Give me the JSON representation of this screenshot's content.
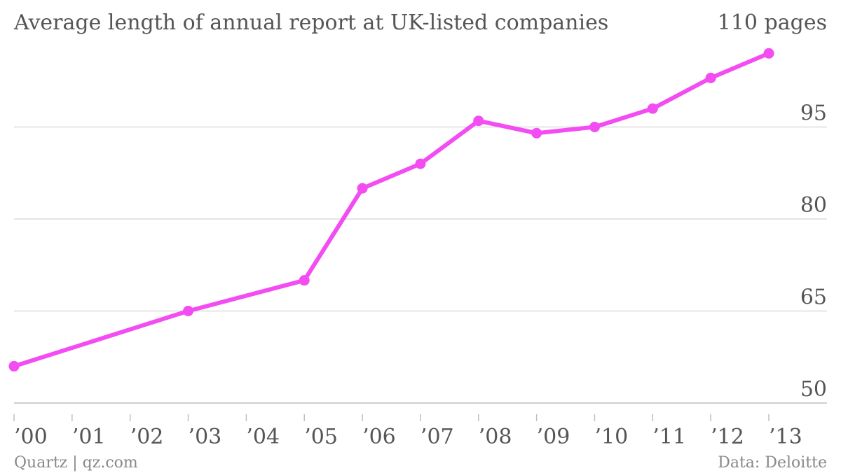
{
  "chart_data": {
    "type": "line",
    "title": "Average length of annual report at UK-listed companies",
    "y_unit_label": "110 pages",
    "categories": [
      "’00",
      "’01",
      "’02",
      "’03",
      "’04",
      "’05",
      "’06",
      "’07",
      "’08",
      "’09",
      "’10",
      "’11",
      "’12",
      "’13"
    ],
    "x": [
      2000,
      2003,
      2005,
      2006,
      2007,
      2008,
      2009,
      2010,
      2011,
      2012,
      2013
    ],
    "series": [
      {
        "values": [
          56,
          65,
          70,
          85,
          89,
          96,
          94,
          95,
          98,
          103,
          107
        ]
      }
    ],
    "y_ticks": [
      50,
      65,
      80,
      95,
      110
    ],
    "ylim": [
      50,
      110
    ],
    "xlim": [
      2000,
      2013
    ],
    "grid": true,
    "color": "#f24cf2",
    "source_left": "Quartz | qz.com",
    "source_right": "Data: Deloitte"
  }
}
